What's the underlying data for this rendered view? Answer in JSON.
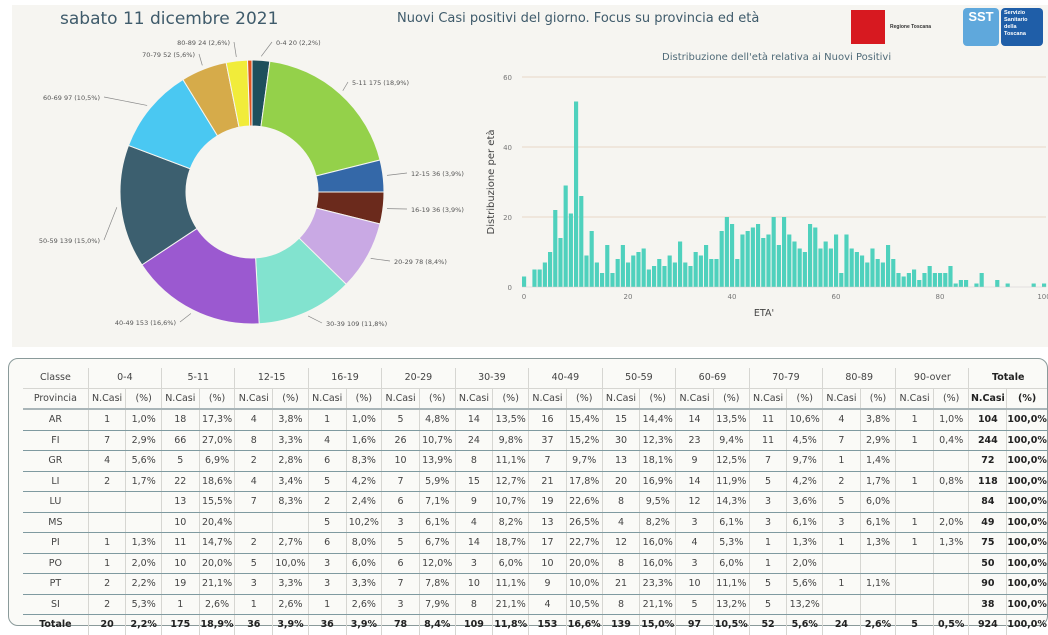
{
  "header": {
    "date": "sabato 11 dicembre 2021",
    "title": "Nuovi Casi positivi del giorno. Focus su provincia ed età",
    "logo_regione": "Regione Toscana",
    "logo_sst_short": "SST",
    "logo_sst_text": [
      "Servizio",
      "Sanitario",
      "della",
      "Toscana"
    ]
  },
  "chart_data": [
    {
      "type": "pie",
      "donut": true,
      "title": "",
      "slices": [
        {
          "label": "0-4",
          "value": 20,
          "pct": "2,2%",
          "color": "#1d4f5c"
        },
        {
          "label": "5-11",
          "value": 175,
          "pct": "18,9%",
          "color": "#94d14a"
        },
        {
          "label": "12-15",
          "value": 36,
          "pct": "3,9%",
          "color": "#3468a8"
        },
        {
          "label": "16-19",
          "value": 36,
          "pct": "3,9%",
          "color": "#6b2a1c"
        },
        {
          "label": "20-29",
          "value": 78,
          "pct": "8,4%",
          "color": "#c9a9e4"
        },
        {
          "label": "30-39",
          "value": 109,
          "pct": "11,8%",
          "color": "#82e3cf"
        },
        {
          "label": "40-49",
          "value": 153,
          "pct": "16,6%",
          "color": "#9b59d0"
        },
        {
          "label": "50-59",
          "value": 139,
          "pct": "15,0%",
          "color": "#3c5f6f"
        },
        {
          "label": "60-69",
          "value": 97,
          "pct": "10,5%",
          "color": "#4ac8f2"
        },
        {
          "label": "70-79",
          "value": 52,
          "pct": "5,6%",
          "color": "#d6ab4a"
        },
        {
          "label": "80-89",
          "value": 24,
          "pct": "2,6%",
          "color": "#f1ec3a"
        },
        {
          "label": "90-over",
          "value": 5,
          "pct": "0,5%",
          "color": "#e0531f"
        }
      ]
    },
    {
      "type": "bar",
      "title": "Distribuzione dell'età relativa ai Nuovi Positivi",
      "xlabel": "ETA'",
      "ylabel": "Distribuzione per età",
      "xlim": [
        0,
        100
      ],
      "ylim": [
        0,
        60
      ],
      "xticks": [
        0,
        20,
        40,
        60,
        80,
        100
      ],
      "yticks": [
        0,
        20,
        40,
        60
      ],
      "grid": true,
      "color": "#4fd1bd",
      "x": [
        0,
        1,
        2,
        3,
        4,
        5,
        6,
        7,
        8,
        9,
        10,
        11,
        12,
        13,
        14,
        15,
        16,
        17,
        18,
        19,
        20,
        21,
        22,
        23,
        24,
        25,
        26,
        27,
        28,
        29,
        30,
        31,
        32,
        33,
        34,
        35,
        36,
        37,
        38,
        39,
        40,
        41,
        42,
        43,
        44,
        45,
        46,
        47,
        48,
        49,
        50,
        51,
        52,
        53,
        54,
        55,
        56,
        57,
        58,
        59,
        60,
        61,
        62,
        63,
        64,
        65,
        66,
        67,
        68,
        69,
        70,
        71,
        72,
        73,
        74,
        75,
        76,
        77,
        78,
        79,
        80,
        81,
        82,
        83,
        84,
        85,
        86,
        87,
        88,
        89,
        90,
        91,
        92,
        93,
        94,
        95,
        96,
        97,
        98,
        99,
        100
      ],
      "values": [
        3,
        0,
        5,
        5,
        7,
        10,
        22,
        14,
        29,
        21,
        53,
        26,
        9,
        16,
        7,
        4,
        12,
        4,
        8,
        12,
        7,
        9,
        10,
        11,
        5,
        6,
        8,
        6,
        9,
        7,
        13,
        7,
        6,
        10,
        9,
        12,
        8,
        8,
        16,
        20,
        18,
        8,
        15,
        16,
        17,
        18,
        14,
        15,
        20,
        12,
        20,
        15,
        13,
        11,
        10,
        18,
        17,
        11,
        13,
        11,
        15,
        4,
        15,
        11,
        10,
        9,
        7,
        11,
        8,
        7,
        12,
        8,
        4,
        3,
        4,
        5,
        2,
        4,
        6,
        4,
        4,
        4,
        6,
        1,
        2,
        2,
        0,
        1,
        4,
        0,
        0,
        2,
        0,
        1,
        0,
        0,
        0,
        0,
        1,
        0,
        1
      ]
    }
  ],
  "table": {
    "corner_top": "Classe",
    "corner_bottom": "Provincia",
    "groups": [
      "0-4",
      "5-11",
      "12-15",
      "16-19",
      "20-29",
      "30-39",
      "40-49",
      "50-59",
      "60-69",
      "70-79",
      "80-89",
      "90-over"
    ],
    "total_group": "Totale",
    "sub_n": "N.Casi",
    "sub_pct": "(%)",
    "rows": [
      {
        "prov": "AR",
        "cells": [
          "1",
          "1,0%",
          "18",
          "17,3%",
          "4",
          "3,8%",
          "1",
          "1,0%",
          "5",
          "4,8%",
          "14",
          "13,5%",
          "16",
          "15,4%",
          "15",
          "14,4%",
          "14",
          "13,5%",
          "11",
          "10,6%",
          "4",
          "3,8%",
          "1",
          "1,0%"
        ],
        "tot": "104",
        "tot_pct": "100,0%"
      },
      {
        "prov": "FI",
        "cells": [
          "7",
          "2,9%",
          "66",
          "27,0%",
          "8",
          "3,3%",
          "4",
          "1,6%",
          "26",
          "10,7%",
          "24",
          "9,8%",
          "37",
          "15,2%",
          "30",
          "12,3%",
          "23",
          "9,4%",
          "11",
          "4,5%",
          "7",
          "2,9%",
          "1",
          "0,4%"
        ],
        "tot": "244",
        "tot_pct": "100,0%"
      },
      {
        "prov": "GR",
        "cells": [
          "4",
          "5,6%",
          "5",
          "6,9%",
          "2",
          "2,8%",
          "6",
          "8,3%",
          "10",
          "13,9%",
          "8",
          "11,1%",
          "7",
          "9,7%",
          "13",
          "18,1%",
          "9",
          "12,5%",
          "7",
          "9,7%",
          "1",
          "1,4%",
          "",
          ""
        ],
        "tot": "72",
        "tot_pct": "100,0%"
      },
      {
        "prov": "LI",
        "cells": [
          "2",
          "1,7%",
          "22",
          "18,6%",
          "4",
          "3,4%",
          "5",
          "4,2%",
          "7",
          "5,9%",
          "15",
          "12,7%",
          "21",
          "17,8%",
          "20",
          "16,9%",
          "14",
          "11,9%",
          "5",
          "4,2%",
          "2",
          "1,7%",
          "1",
          "0,8%"
        ],
        "tot": "118",
        "tot_pct": "100,0%"
      },
      {
        "prov": "LU",
        "cells": [
          "",
          "",
          "13",
          "15,5%",
          "7",
          "8,3%",
          "2",
          "2,4%",
          "6",
          "7,1%",
          "9",
          "10,7%",
          "19",
          "22,6%",
          "8",
          "9,5%",
          "12",
          "14,3%",
          "3",
          "3,6%",
          "5",
          "6,0%",
          "",
          ""
        ],
        "tot": "84",
        "tot_pct": "100,0%"
      },
      {
        "prov": "MS",
        "cells": [
          "",
          "",
          "10",
          "20,4%",
          "",
          "",
          "5",
          "10,2%",
          "3",
          "6,1%",
          "4",
          "8,2%",
          "13",
          "26,5%",
          "4",
          "8,2%",
          "3",
          "6,1%",
          "3",
          "6,1%",
          "3",
          "6,1%",
          "1",
          "2,0%"
        ],
        "tot": "49",
        "tot_pct": "100,0%"
      },
      {
        "prov": "PI",
        "cells": [
          "1",
          "1,3%",
          "11",
          "14,7%",
          "2",
          "2,7%",
          "6",
          "8,0%",
          "5",
          "6,7%",
          "14",
          "18,7%",
          "17",
          "22,7%",
          "12",
          "16,0%",
          "4",
          "5,3%",
          "1",
          "1,3%",
          "1",
          "1,3%",
          "1",
          "1,3%"
        ],
        "tot": "75",
        "tot_pct": "100,0%"
      },
      {
        "prov": "PO",
        "cells": [
          "1",
          "2,0%",
          "10",
          "20,0%",
          "5",
          "10,0%",
          "3",
          "6,0%",
          "6",
          "12,0%",
          "3",
          "6,0%",
          "10",
          "20,0%",
          "8",
          "16,0%",
          "3",
          "6,0%",
          "1",
          "2,0%",
          "",
          "",
          "",
          ""
        ],
        "tot": "50",
        "tot_pct": "100,0%"
      },
      {
        "prov": "PT",
        "cells": [
          "2",
          "2,2%",
          "19",
          "21,1%",
          "3",
          "3,3%",
          "3",
          "3,3%",
          "7",
          "7,8%",
          "10",
          "11,1%",
          "9",
          "10,0%",
          "21",
          "23,3%",
          "10",
          "11,1%",
          "5",
          "5,6%",
          "1",
          "1,1%",
          "",
          ""
        ],
        "tot": "90",
        "tot_pct": "100,0%"
      },
      {
        "prov": "SI",
        "cells": [
          "2",
          "5,3%",
          "1",
          "2,6%",
          "1",
          "2,6%",
          "1",
          "2,6%",
          "3",
          "7,9%",
          "8",
          "21,1%",
          "4",
          "10,5%",
          "8",
          "21,1%",
          "5",
          "13,2%",
          "5",
          "13,2%",
          "",
          "",
          "",
          ""
        ],
        "tot": "38",
        "tot_pct": "100,0%"
      }
    ],
    "total_row": {
      "prov": "Totale",
      "cells": [
        "20",
        "2,2%",
        "175",
        "18,9%",
        "36",
        "3,9%",
        "36",
        "3,9%",
        "78",
        "8,4%",
        "109",
        "11,8%",
        "153",
        "16,6%",
        "139",
        "15,0%",
        "97",
        "10,5%",
        "52",
        "5,6%",
        "24",
        "2,6%",
        "5",
        "0,5%"
      ],
      "tot": "924",
      "tot_pct": "100,0%"
    }
  }
}
